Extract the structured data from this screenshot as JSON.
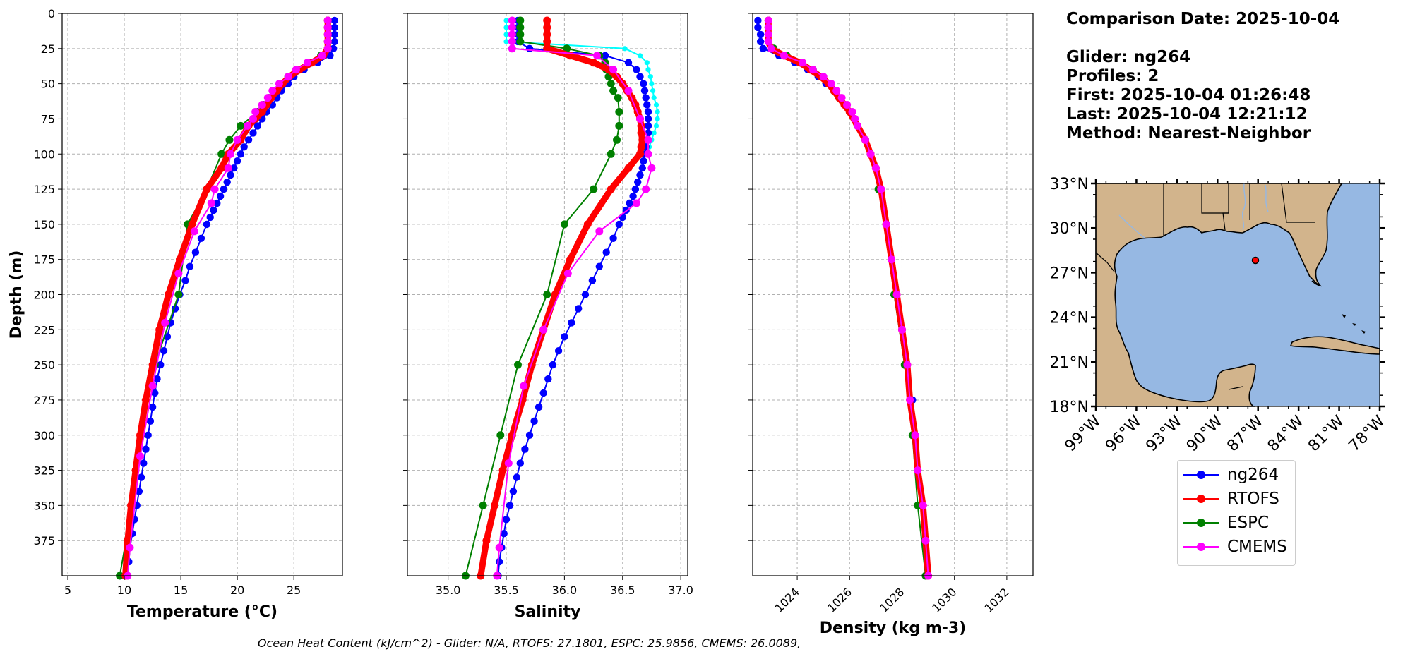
{
  "info": {
    "comparison_date": "Comparison Date: 2025-10-04",
    "glider": "Glider: ng264",
    "profiles": "Profiles: 2",
    "first": "First: 2025-10-04 01:26:48",
    "last": "Last: 2025-10-04 12:21:12",
    "method": "Method: Nearest-Neighbor"
  },
  "legend": [
    {
      "name": "ng264",
      "color": "#0000ff"
    },
    {
      "name": "RTOFS",
      "color": "#ff0000"
    },
    {
      "name": "ESPC",
      "color": "#008000"
    },
    {
      "name": "CMEMS",
      "color": "#ff00ff"
    }
  ],
  "footer": "Ocean Heat Content (kJ/cm^2) - Glider: N/A,  RTOFS: 27.1801,  ESPC: 25.9856,  CMEMS: 26.0089,",
  "chart_data": [
    {
      "type": "line",
      "xlabel": "Temperature (°C)",
      "ylabel": "Depth (m)",
      "xlim": [
        4.5,
        29.3
      ],
      "ylim": [
        400,
        0
      ],
      "xticks": [
        5,
        10,
        15,
        20,
        25
      ],
      "yticks": [
        0,
        25,
        50,
        75,
        100,
        125,
        150,
        175,
        200,
        225,
        250,
        275,
        300,
        325,
        350,
        375
      ],
      "grid": true,
      "series": [
        {
          "name": "ng264",
          "color": "#0000ff",
          "depth": [
            5,
            10,
            15,
            20,
            25,
            30,
            35,
            40,
            45,
            50,
            55,
            60,
            65,
            70,
            75,
            80,
            85,
            90,
            95,
            100,
            105,
            110,
            115,
            120,
            125,
            130,
            135,
            140,
            145,
            150,
            160,
            170,
            180,
            190,
            200,
            210,
            220,
            230,
            240,
            250,
            260,
            270,
            280,
            290,
            300,
            310,
            320,
            330,
            340,
            350,
            360,
            370,
            380,
            390,
            400
          ],
          "values": [
            28.6,
            28.6,
            28.6,
            28.6,
            28.5,
            28.2,
            27.1,
            25.9,
            25.0,
            24.5,
            23.9,
            23.5,
            23.1,
            22.6,
            22.2,
            21.8,
            21.4,
            21.0,
            20.6,
            20.3,
            20.0,
            19.7,
            19.4,
            19.1,
            18.8,
            18.5,
            18.2,
            17.9,
            17.6,
            17.3,
            16.8,
            16.3,
            15.8,
            15.4,
            14.9,
            14.5,
            14.1,
            13.8,
            13.5,
            13.2,
            12.9,
            12.7,
            12.5,
            12.3,
            12.1,
            11.9,
            11.7,
            11.5,
            11.3,
            11.1,
            10.9,
            10.7,
            10.5,
            10.4,
            10.3
          ]
        },
        {
          "name": "RTOFS",
          "color": "#ff0000",
          "depth": [
            5,
            10,
            15,
            20,
            25,
            30,
            35,
            40,
            45,
            50,
            55,
            60,
            65,
            70,
            75,
            80,
            90,
            100,
            110,
            125,
            150,
            175,
            200,
            225,
            250,
            275,
            300,
            325,
            350,
            375,
            400
          ],
          "values": [
            28.0,
            28.0,
            28.0,
            28.0,
            28.0,
            27.6,
            26.6,
            25.5,
            24.6,
            24.0,
            23.5,
            23.0,
            22.6,
            22.2,
            21.6,
            21.0,
            20.3,
            19.2,
            18.6,
            17.3,
            16.0,
            14.9,
            13.9,
            13.1,
            12.5,
            11.9,
            11.4,
            11.0,
            10.6,
            10.3,
            10.1
          ]
        },
        {
          "name": "ESPC",
          "color": "#008000",
          "depth": [
            5,
            10,
            15,
            20,
            25,
            30,
            35,
            40,
            45,
            50,
            55,
            60,
            65,
            70,
            80,
            90,
            100,
            125,
            150,
            200,
            250,
            300,
            350,
            400
          ],
          "values": [
            28.0,
            28.0,
            28.0,
            28.0,
            28.0,
            27.4,
            26.3,
            25.4,
            24.5,
            23.9,
            23.3,
            22.8,
            22.3,
            21.8,
            20.3,
            19.3,
            18.6,
            17.3,
            15.6,
            14.8,
            12.7,
            11.5,
            10.7,
            9.6
          ]
        },
        {
          "name": "CMEMS",
          "color": "#ff00ff",
          "depth": [
            5,
            10,
            15,
            20,
            25,
            30,
            35,
            40,
            45,
            50,
            55,
            60,
            65,
            70,
            75,
            80,
            90,
            100,
            110,
            125,
            135,
            155,
            185,
            220,
            265,
            315,
            380,
            400
          ],
          "values": [
            28.0,
            28.0,
            28.0,
            28.0,
            28.0,
            27.5,
            26.2,
            25.2,
            24.5,
            23.7,
            23.1,
            22.7,
            22.2,
            21.6,
            21.4,
            20.9,
            20.0,
            19.4,
            19.2,
            18.0,
            17.7,
            16.2,
            14.8,
            13.6,
            12.5,
            11.4,
            10.5,
            10.3
          ]
        }
      ]
    },
    {
      "type": "line",
      "xlabel": "Salinity",
      "ylabel": "",
      "xlim": [
        34.65,
        37.06
      ],
      "ylim": [
        400,
        0
      ],
      "xticks": [
        35.0,
        35.5,
        36.0,
        36.5,
        37.0
      ],
      "yticks": [
        0,
        25,
        50,
        75,
        100,
        125,
        150,
        175,
        200,
        225,
        250,
        275,
        300,
        325,
        350,
        375
      ],
      "grid": true,
      "series": [
        {
          "name": "ng264",
          "color": "#0000ff",
          "depth": [
            5,
            10,
            15,
            20,
            25,
            30,
            35,
            40,
            45,
            50,
            55,
            60,
            65,
            70,
            75,
            80,
            85,
            90,
            95,
            100,
            105,
            110,
            115,
            120,
            125,
            130,
            135,
            140,
            145,
            150,
            160,
            170,
            180,
            190,
            200,
            210,
            220,
            230,
            240,
            250,
            260,
            270,
            280,
            290,
            300,
            310,
            320,
            330,
            340,
            350,
            360,
            370,
            380,
            390,
            400
          ],
          "values": [
            35.6,
            35.6,
            35.6,
            35.6,
            35.7,
            36.35,
            36.55,
            36.62,
            36.65,
            36.68,
            36.69,
            36.7,
            36.71,
            36.72,
            36.72,
            36.72,
            36.72,
            36.71,
            36.7,
            36.69,
            36.68,
            36.67,
            36.65,
            36.63,
            36.61,
            36.59,
            36.56,
            36.53,
            36.5,
            36.47,
            36.42,
            36.36,
            36.3,
            36.24,
            36.18,
            36.12,
            36.06,
            36.0,
            35.95,
            35.9,
            35.86,
            35.82,
            35.78,
            35.74,
            35.7,
            35.66,
            35.62,
            35.59,
            35.56,
            35.53,
            35.5,
            35.48,
            35.46,
            35.44,
            35.43
          ]
        },
        {
          "name": "RTOFS",
          "color": "#ff0000",
          "depth": [
            5,
            10,
            15,
            20,
            25,
            30,
            35,
            40,
            45,
            50,
            55,
            60,
            65,
            70,
            75,
            80,
            85,
            90,
            95,
            100,
            110,
            125,
            150,
            175,
            200,
            225,
            250,
            275,
            300,
            325,
            350,
            375,
            400
          ],
          "values": [
            35.85,
            35.85,
            35.85,
            35.85,
            35.85,
            36.05,
            36.25,
            36.38,
            36.45,
            36.5,
            36.54,
            36.58,
            36.61,
            36.63,
            36.65,
            36.66,
            36.66,
            36.67,
            36.66,
            36.65,
            36.55,
            36.4,
            36.2,
            36.05,
            35.92,
            35.82,
            35.72,
            35.64,
            35.55,
            35.47,
            35.4,
            35.33,
            35.28
          ]
        },
        {
          "name": "ESPC",
          "color": "#008000",
          "depth": [
            5,
            10,
            15,
            20,
            25,
            30,
            35,
            40,
            45,
            50,
            55,
            60,
            70,
            80,
            90,
            100,
            125,
            150,
            200,
            250,
            300,
            350,
            400
          ],
          "values": [
            35.62,
            35.62,
            35.62,
            35.62,
            36.02,
            36.3,
            36.35,
            36.36,
            36.38,
            36.4,
            36.42,
            36.46,
            36.47,
            36.47,
            36.45,
            36.4,
            36.25,
            36.0,
            35.85,
            35.6,
            35.45,
            35.3,
            35.15
          ]
        },
        {
          "name": "CMEMS",
          "color": "#ff00ff",
          "depth": [
            5,
            10,
            15,
            20,
            25,
            30,
            40,
            55,
            75,
            90,
            100,
            110,
            125,
            135,
            155,
            185,
            225,
            265,
            320,
            380,
            400
          ],
          "values": [
            35.55,
            35.55,
            35.55,
            35.55,
            35.55,
            36.28,
            36.42,
            36.55,
            36.65,
            36.72,
            36.72,
            36.75,
            36.7,
            36.62,
            36.3,
            36.03,
            35.82,
            35.65,
            35.52,
            35.44,
            35.42
          ]
        },
        {
          "name": "",
          "color": "#00ffff",
          "depth": [
            5,
            10,
            15,
            20,
            25,
            30,
            35,
            40,
            45,
            50,
            55,
            60,
            65,
            70,
            75,
            80,
            85,
            90,
            95,
            100
          ],
          "values": [
            35.5,
            35.5,
            35.5,
            35.5,
            36.52,
            36.65,
            36.71,
            36.72,
            36.74,
            36.75,
            36.76,
            36.77,
            36.79,
            36.8,
            36.8,
            36.79,
            36.77,
            36.75,
            36.73,
            36.71
          ]
        }
      ]
    },
    {
      "type": "line",
      "xlabel": "Density (kg m-3)",
      "ylabel": "",
      "xlim": [
        1022.3,
        1033.0
      ],
      "ylim": [
        400,
        0
      ],
      "xticks": [
        1024,
        1026,
        1028,
        1030,
        1032
      ],
      "yticks": [
        0,
        25,
        50,
        75,
        100,
        125,
        150,
        175,
        200,
        225,
        250,
        275,
        300,
        325,
        350,
        375
      ],
      "grid": true,
      "series": [
        {
          "name": "ng264",
          "color": "#0000ff",
          "depth": [
            5,
            10,
            15,
            20,
            25,
            30,
            35,
            40,
            45,
            50,
            55,
            60,
            65,
            70,
            80,
            90,
            100,
            110,
            125,
            150,
            175,
            200,
            225,
            250,
            275,
            300,
            325,
            350,
            375,
            400
          ],
          "values": [
            1022.5,
            1022.5,
            1022.6,
            1022.6,
            1022.7,
            1023.3,
            1023.9,
            1024.4,
            1024.8,
            1025.1,
            1025.4,
            1025.6,
            1025.8,
            1026.0,
            1026.3,
            1026.6,
            1026.8,
            1027.0,
            1027.1,
            1027.4,
            1027.6,
            1027.8,
            1028.0,
            1028.2,
            1028.4,
            1028.5,
            1028.6,
            1028.8,
            1028.9,
            1029.0
          ]
        },
        {
          "name": "RTOFS",
          "color": "#ff0000",
          "depth": [
            5,
            10,
            15,
            20,
            25,
            30,
            35,
            40,
            45,
            50,
            55,
            60,
            65,
            70,
            80,
            90,
            100,
            110,
            125,
            150,
            175,
            200,
            225,
            250,
            275,
            300,
            325,
            350,
            375,
            400
          ],
          "values": [
            1022.9,
            1022.9,
            1022.9,
            1022.9,
            1023.0,
            1023.5,
            1024.1,
            1024.5,
            1024.9,
            1025.2,
            1025.4,
            1025.6,
            1025.8,
            1026.0,
            1026.3,
            1026.6,
            1026.8,
            1027.0,
            1027.2,
            1027.4,
            1027.6,
            1027.8,
            1028.0,
            1028.2,
            1028.3,
            1028.5,
            1028.6,
            1028.8,
            1028.9,
            1029.0
          ]
        },
        {
          "name": "ESPC",
          "color": "#008000",
          "depth": [
            5,
            10,
            15,
            20,
            25,
            30,
            35,
            40,
            45,
            50,
            55,
            60,
            70,
            80,
            90,
            100,
            125,
            150,
            200,
            250,
            300,
            350,
            400
          ],
          "values": [
            1022.9,
            1022.9,
            1022.9,
            1022.9,
            1023.1,
            1023.6,
            1024.2,
            1024.6,
            1024.9,
            1025.2,
            1025.4,
            1025.6,
            1026.0,
            1026.3,
            1026.6,
            1026.8,
            1027.1,
            1027.4,
            1027.7,
            1028.1,
            1028.4,
            1028.6,
            1028.9
          ]
        },
        {
          "name": "CMEMS",
          "color": "#ff00ff",
          "depth": [
            5,
            10,
            15,
            20,
            25,
            30,
            35,
            40,
            45,
            50,
            55,
            60,
            65,
            70,
            75,
            80,
            90,
            100,
            110,
            125,
            150,
            175,
            200,
            225,
            250,
            275,
            300,
            325,
            350,
            375,
            400
          ],
          "values": [
            1022.9,
            1022.9,
            1022.9,
            1022.9,
            1023.0,
            1023.5,
            1024.2,
            1024.6,
            1025.0,
            1025.3,
            1025.5,
            1025.7,
            1025.9,
            1026.1,
            1026.2,
            1026.3,
            1026.6,
            1026.8,
            1027.0,
            1027.2,
            1027.4,
            1027.6,
            1027.8,
            1028.0,
            1028.2,
            1028.3,
            1028.5,
            1028.6,
            1028.8,
            1028.9,
            1029.0
          ]
        }
      ]
    },
    {
      "type": "map",
      "lon_range": [
        -99,
        -78
      ],
      "lat_range": [
        18,
        33
      ],
      "xticks": [
        "99°W",
        "96°W",
        "93°W",
        "90°W",
        "87°W",
        "84°W",
        "81°W",
        "78°W"
      ],
      "yticks": [
        "33°N",
        "30°N",
        "27°N",
        "24°N",
        "21°N",
        "18°N"
      ],
      "glider_position": {
        "lon": -87.9,
        "lat": 28.0
      },
      "land_color": "#d2b48c",
      "ocean_color": "#96b8e3"
    }
  ]
}
